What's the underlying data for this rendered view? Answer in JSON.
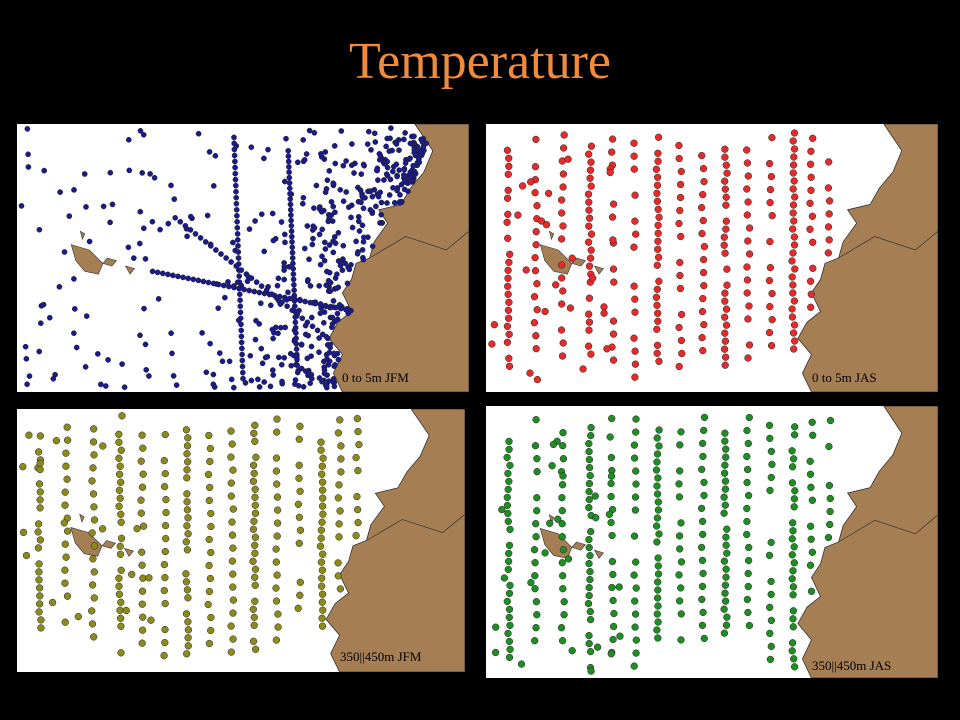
{
  "title": "Temperature",
  "land_color": "#a57f53",
  "panels": [
    {
      "label": "0 to 5m JFM",
      "color": "#1a1a8c",
      "pattern": "dense"
    },
    {
      "label": "0 to 5m JAS",
      "color": "#e32b2b",
      "pattern": "columns"
    },
    {
      "label": "350||450m JFM",
      "color": "#8c8a1c",
      "pattern": "columns"
    },
    {
      "label": "350||450m JAS",
      "color": "#1f8c24",
      "pattern": "columns"
    }
  ]
}
